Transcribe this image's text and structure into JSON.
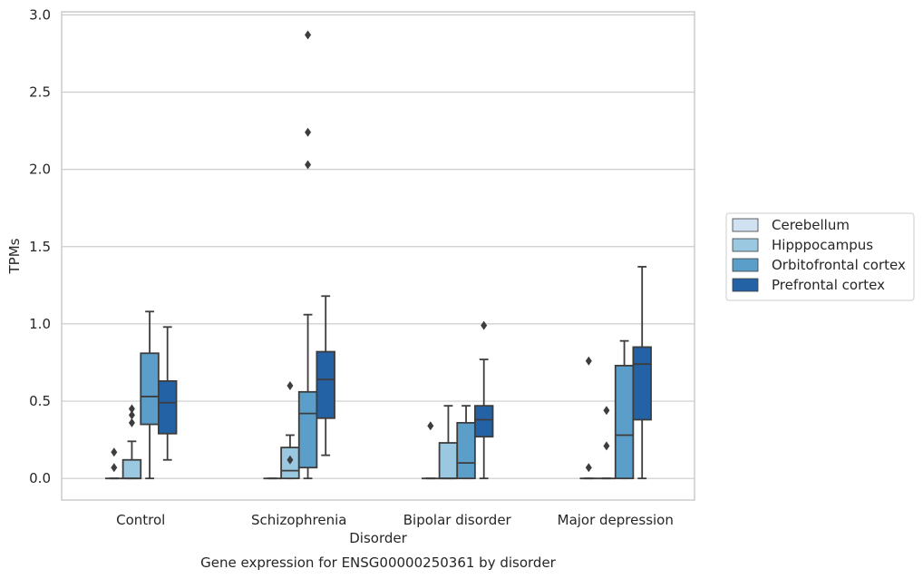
{
  "chart_data": {
    "type": "box",
    "title": "",
    "caption": "Gene expression for ENSG00000250361 by disorder",
    "xlabel": "Disorder",
    "ylabel": "TPMs",
    "ylim": [
      -0.14,
      3.02
    ],
    "yticks": [
      "0.0",
      "0.5",
      "1.0",
      "1.5",
      "2.0",
      "2.5",
      "3.0"
    ],
    "grid": "horizontal",
    "legend_position": "right",
    "categories": [
      "Control",
      "Schizophrenia",
      "Bipolar disorder",
      "Major depression"
    ],
    "series": [
      {
        "name": "Cerebellum",
        "color": "#d0e1f2",
        "boxes": [
          {
            "min": 0,
            "q1": 0,
            "median": 0,
            "q3": 0,
            "max": 0,
            "outliers": [
              0.07,
              0.17
            ]
          },
          {
            "min": 0,
            "q1": 0,
            "median": 0,
            "q3": 0,
            "max": 0,
            "outliers": []
          },
          {
            "min": 0,
            "q1": 0,
            "median": 0,
            "q3": 0,
            "max": 0,
            "outliers": [
              0.34
            ]
          },
          {
            "min": 0,
            "q1": 0,
            "median": 0,
            "q3": 0,
            "max": 0,
            "outliers": [
              0.07,
              0.76
            ]
          }
        ]
      },
      {
        "name": "Hipppocampus",
        "color": "#9ac8e0",
        "boxes": [
          {
            "min": 0,
            "q1": 0,
            "median": 0,
            "q3": 0.12,
            "max": 0.24,
            "outliers": [
              0.36,
              0.41,
              0.45
            ]
          },
          {
            "min": 0,
            "q1": 0,
            "median": 0.05,
            "q3": 0.2,
            "max": 0.28,
            "outliers": [
              0.12,
              0.6
            ]
          },
          {
            "min": 0,
            "q1": 0,
            "median": 0,
            "q3": 0.23,
            "max": 0.47,
            "outliers": []
          },
          {
            "min": 0,
            "q1": 0,
            "median": 0,
            "q3": 0,
            "max": 0,
            "outliers": [
              0.21,
              0.44
            ]
          }
        ]
      },
      {
        "name": "Orbitofrontal cortex",
        "color": "#5a9ec9",
        "boxes": [
          {
            "min": 0,
            "q1": 0.35,
            "median": 0.53,
            "q3": 0.81,
            "max": 1.08,
            "outliers": []
          },
          {
            "min": 0,
            "q1": 0.07,
            "median": 0.42,
            "q3": 0.56,
            "max": 1.06,
            "outliers": [
              2.03,
              2.24,
              2.87
            ]
          },
          {
            "min": 0,
            "q1": 0,
            "median": 0.1,
            "q3": 0.36,
            "max": 0.47,
            "outliers": []
          },
          {
            "min": 0,
            "q1": 0,
            "median": 0.28,
            "q3": 0.73,
            "max": 0.89,
            "outliers": []
          }
        ]
      },
      {
        "name": "Prefrontal cortex",
        "color": "#2462a6",
        "boxes": [
          {
            "min": 0.12,
            "q1": 0.29,
            "median": 0.49,
            "q3": 0.63,
            "max": 0.98,
            "outliers": []
          },
          {
            "min": 0.15,
            "q1": 0.39,
            "median": 0.64,
            "q3": 0.82,
            "max": 1.18,
            "outliers": []
          },
          {
            "min": 0,
            "q1": 0.27,
            "median": 0.38,
            "q3": 0.47,
            "max": 0.77,
            "outliers": [
              0.99
            ]
          },
          {
            "min": 0,
            "q1": 0.38,
            "median": 0.74,
            "q3": 0.85,
            "max": 1.37,
            "outliers": []
          }
        ]
      }
    ]
  }
}
